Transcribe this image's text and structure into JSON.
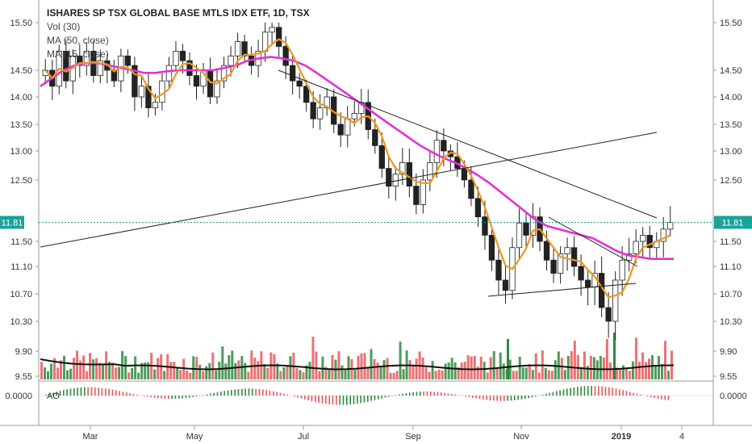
{
  "header": {
    "title": "ISHARES SP TSX GLOBAL BASE MTLS IDX ETF, 1D, TSX",
    "vol_label": "Vol (30)",
    "ma50_label": "MA (50, close)",
    "ma_label": "MA (15, close)"
  },
  "ao_label": "AO",
  "colors": {
    "up": "#2e8b3e",
    "down": "#e8585b",
    "ma50": "#e530d6",
    "ma15": "#f0961e",
    "price_line": "#1aa39a",
    "vol_ma": "#111111"
  },
  "chart_data": {
    "type": "candlestick",
    "ylabels": [
      "15.50",
      "14.50",
      "14.00",
      "13.50",
      "13.00",
      "12.50",
      "11.50",
      "11.10",
      "10.70",
      "10.30",
      "9.90",
      "9.55"
    ],
    "yticks": [
      15.5,
      14.5,
      14.0,
      13.5,
      13.0,
      12.5,
      11.5,
      11.1,
      10.7,
      10.3,
      9.9,
      9.55
    ],
    "last_price": "11.81",
    "ao_value": "0.0000",
    "xlabels": [
      "Mar",
      "May",
      "Jul",
      "Sep",
      "Nov",
      "2019",
      "4"
    ],
    "close_series": [
      14.5,
      14.2,
      14.9,
      14.3,
      14.8,
      14.6,
      14.9,
      14.4,
      14.7,
      14.5,
      14.3,
      14.8,
      14.6,
      14.0,
      14.2,
      13.8,
      13.9,
      14.3,
      14.6,
      14.9,
      14.7,
      14.4,
      14.2,
      14.5,
      14.0,
      14.3,
      14.6,
      14.8,
      15.1,
      14.8,
      14.6,
      14.9,
      15.3,
      15.4,
      15.0,
      14.6,
      14.3,
      14.2,
      13.9,
      13.6,
      13.8,
      14.0,
      13.5,
      13.3,
      13.6,
      13.7,
      13.9,
      13.4,
      13.1,
      12.7,
      12.4,
      12.6,
      12.8,
      12.4,
      12.1,
      12.5,
      12.8,
      13.2,
      13.0,
      12.9,
      12.7,
      12.5,
      12.2,
      11.9,
      11.6,
      11.2,
      10.9,
      10.75,
      11.4,
      11.8,
      11.6,
      11.9,
      11.5,
      11.2,
      11.0,
      11.3,
      11.4,
      11.1,
      10.9,
      10.8,
      11.0,
      10.5,
      10.3,
      10.9,
      11.2,
      11.3,
      11.5,
      11.6,
      11.4,
      11.5,
      11.7,
      11.81
    ],
    "ma50_series": [
      14.2,
      14.35,
      14.5,
      14.6,
      14.65,
      14.65,
      14.6,
      14.55,
      14.5,
      14.45,
      14.45,
      14.48,
      14.5,
      14.5,
      14.5,
      14.5,
      14.55,
      14.6,
      14.7,
      14.75,
      14.78,
      14.75,
      14.7,
      14.6,
      14.45,
      14.3,
      14.15,
      14.0,
      13.85,
      13.7,
      13.55,
      13.4,
      13.25,
      13.1,
      12.98,
      12.88,
      12.8,
      12.7,
      12.58,
      12.45,
      12.3,
      12.15,
      12.0,
      11.85,
      11.75,
      11.7,
      11.65,
      11.6,
      11.55,
      11.45,
      11.35,
      11.28,
      11.25,
      11.22,
      11.22,
      11.22
    ]
  }
}
